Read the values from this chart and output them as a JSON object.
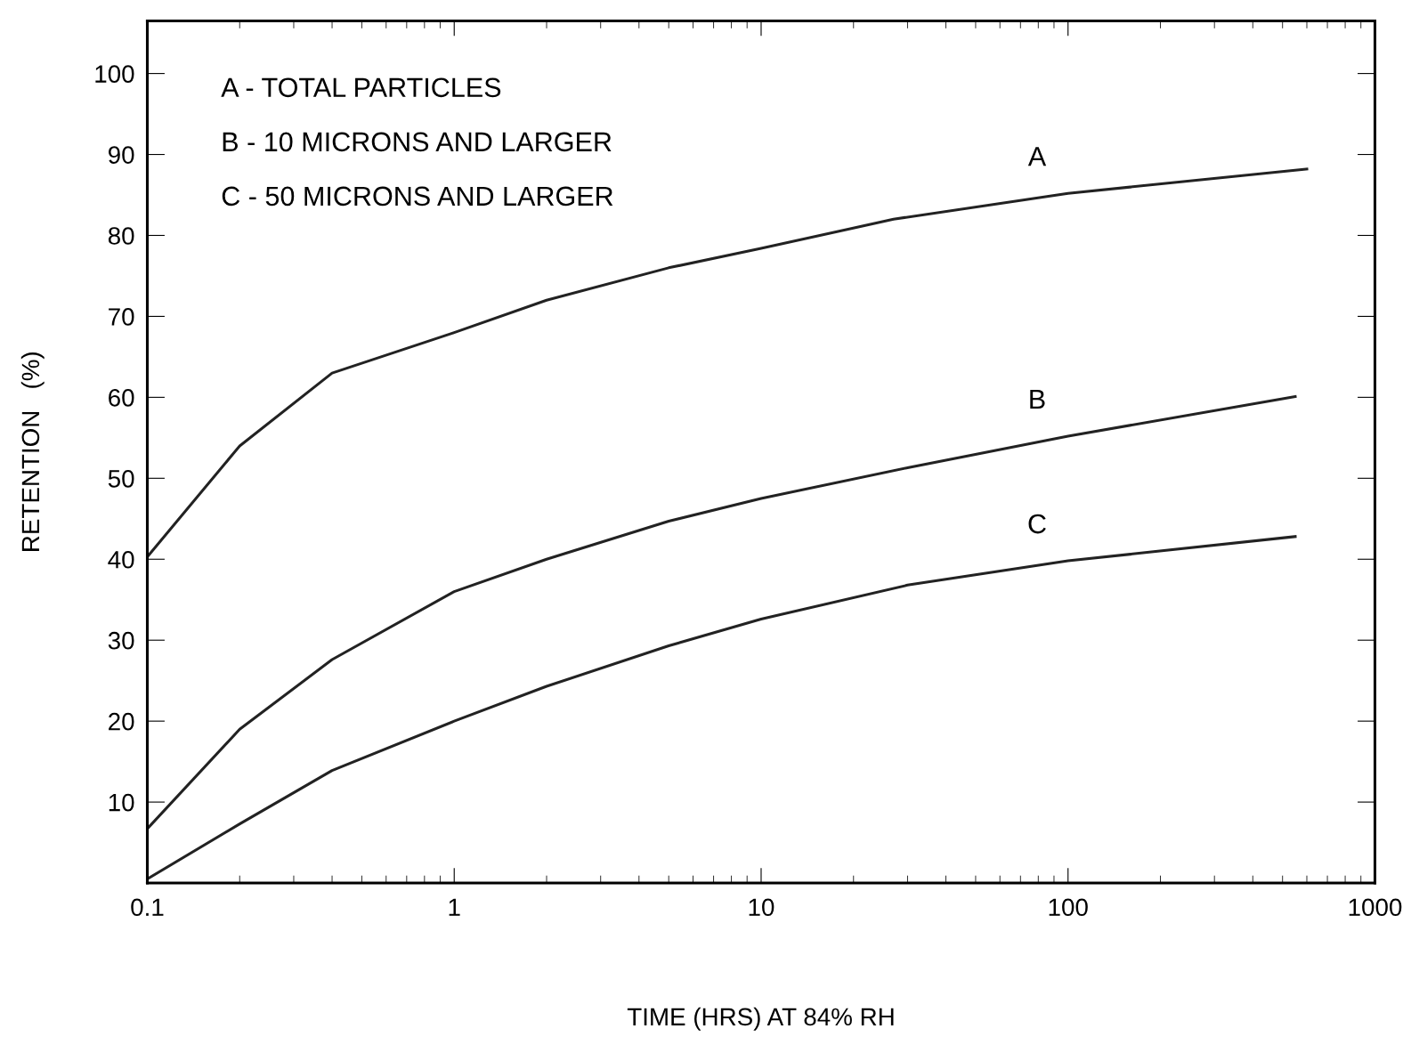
{
  "chart_data": {
    "type": "line",
    "xlabel": "TIME (HRS) AT 84% RH",
    "ylabel": "RETENTION   (%)",
    "log": "x",
    "xlim": [
      0.1,
      1000
    ],
    "xticks": [
      0.1,
      1,
      10,
      100,
      1000
    ],
    "ylim": [
      0,
      106.5
    ],
    "yticks": [
      10,
      20,
      30,
      40,
      50,
      60,
      70,
      80,
      90,
      100
    ],
    "grid": false,
    "marker": "none",
    "line_style": "solid",
    "series": [
      {
        "name": "A",
        "color": "#222222",
        "x": [
          0.1,
          0.2,
          0.4,
          1,
          2,
          5,
          10,
          27,
          100,
          600
        ],
        "values": [
          40.3,
          54,
          63,
          68,
          72,
          76,
          78.4,
          82,
          85.2,
          88.2
        ]
      },
      {
        "name": "B",
        "color": "#222222",
        "x": [
          0.1,
          0.2,
          0.4,
          1,
          2,
          5,
          10,
          30,
          100,
          550
        ],
        "values": [
          6.7,
          19,
          27.6,
          36,
          40,
          44.7,
          47.5,
          51.3,
          55.2,
          60.1
        ]
      },
      {
        "name": "C",
        "color": "#222222",
        "x": [
          0.1,
          0.2,
          0.4,
          1,
          2,
          5,
          10,
          30,
          100,
          550
        ],
        "values": [
          0.5,
          7.3,
          13.9,
          20,
          24.3,
          29.3,
          32.6,
          36.8,
          39.8,
          42.8
        ]
      }
    ],
    "annotations": [
      "A - TOTAL PARTICLES",
      "B - 10 MICRONS AND LARGER",
      "C - 50 MICRONS AND LARGER"
    ]
  }
}
